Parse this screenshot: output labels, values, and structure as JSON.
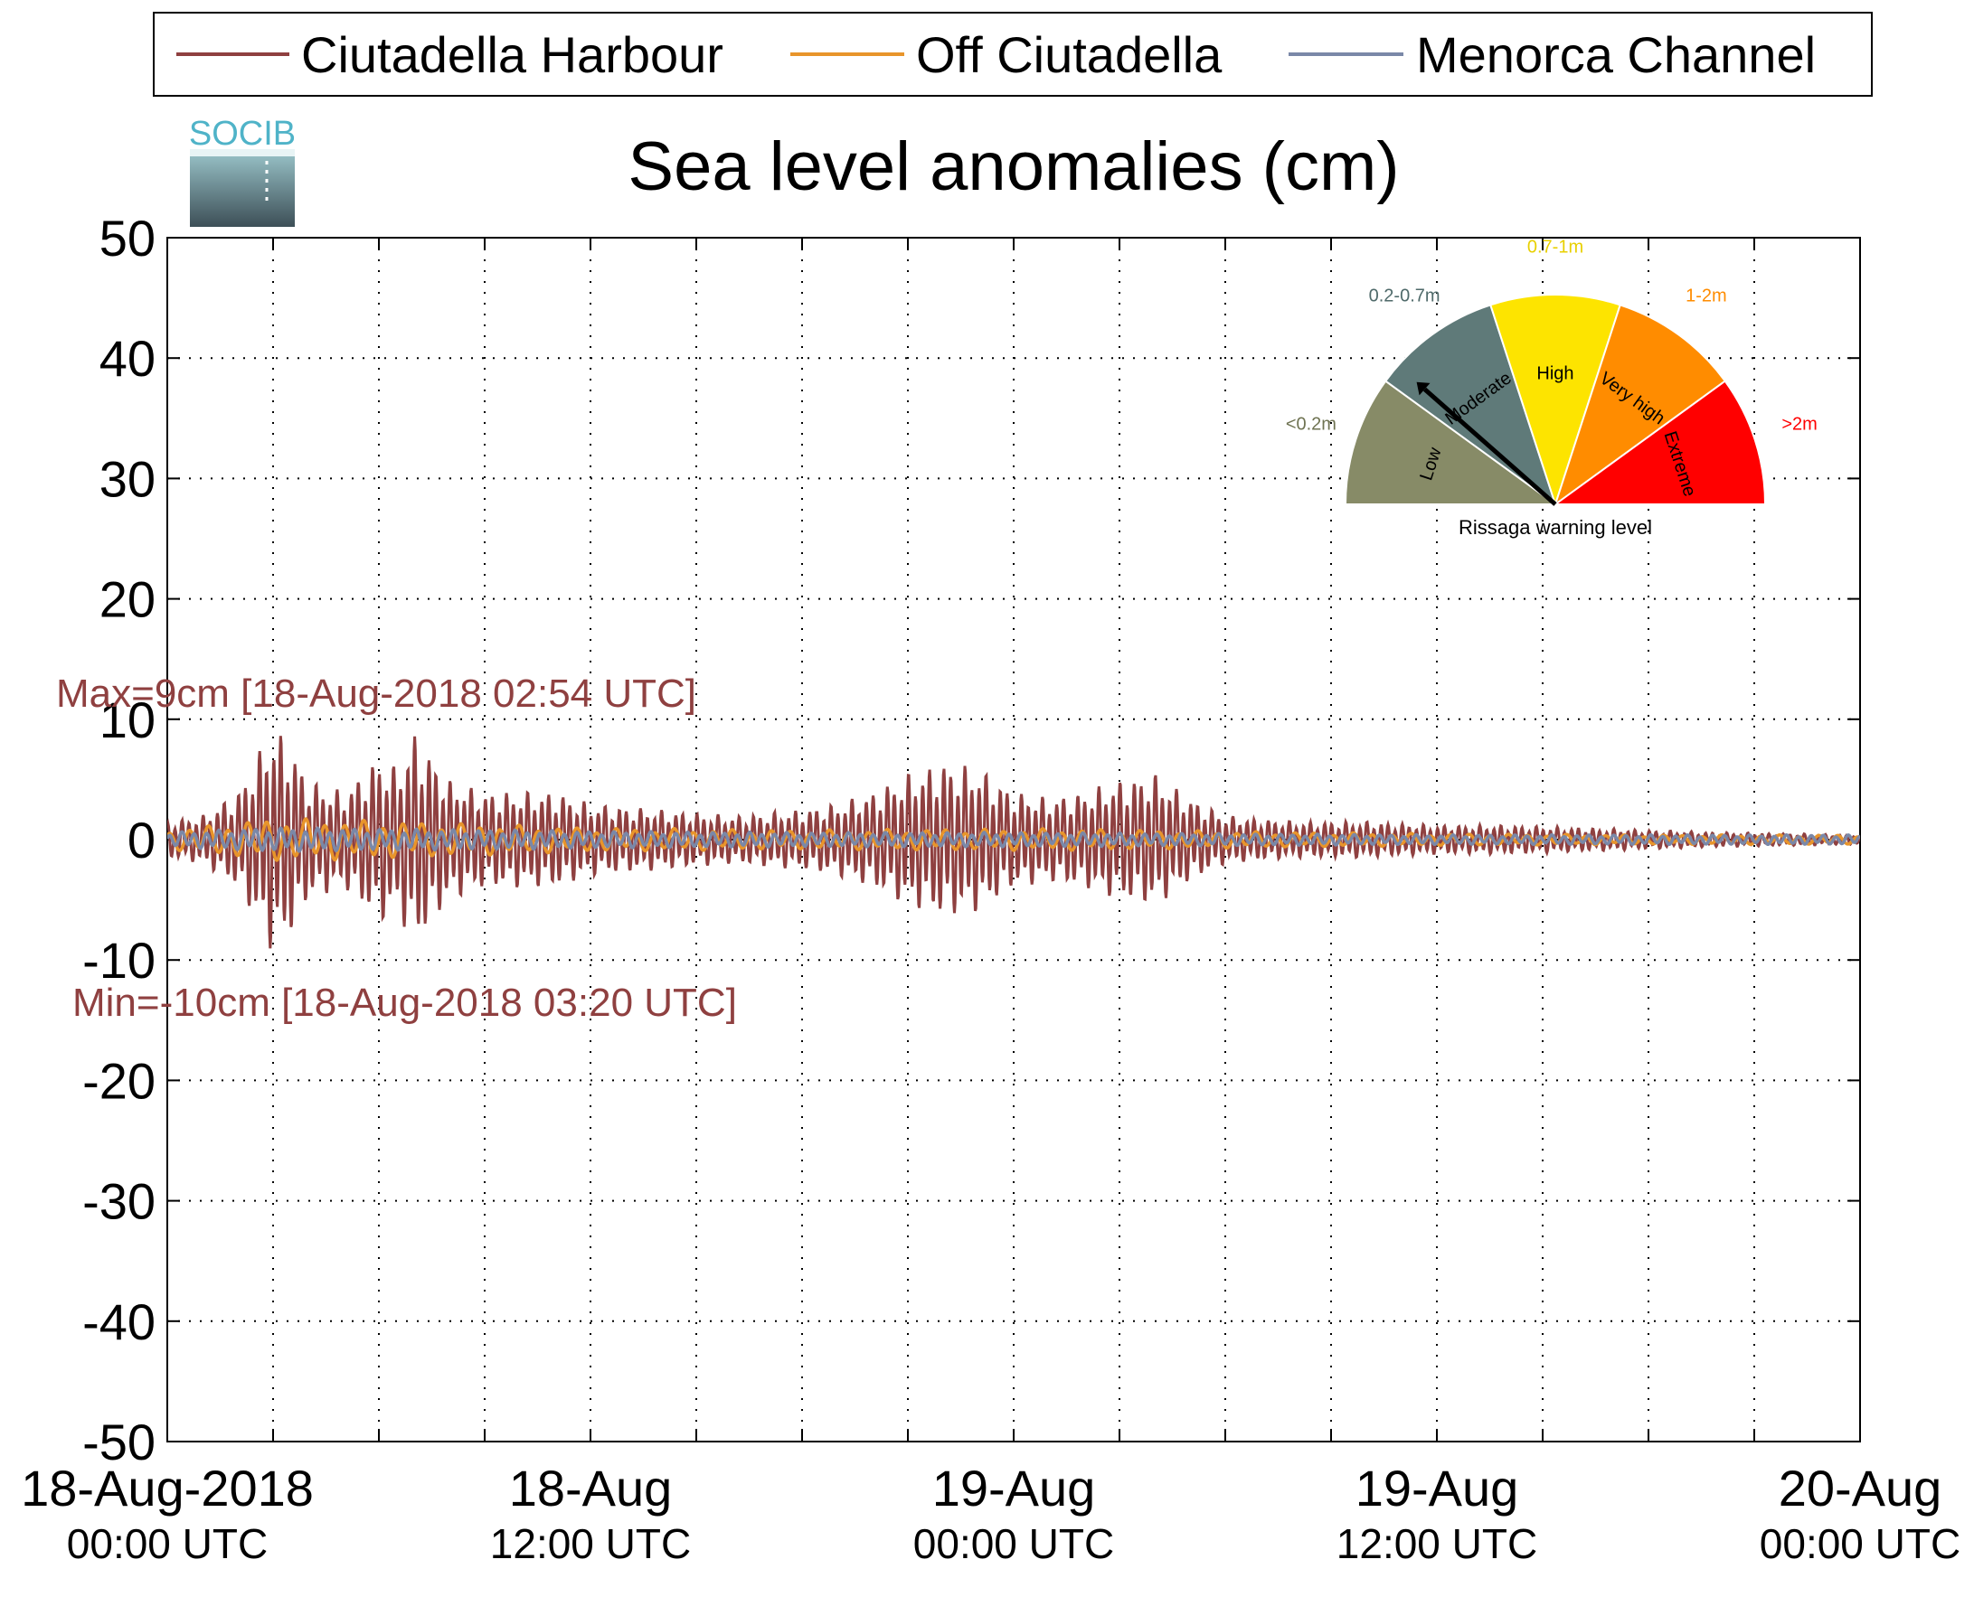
{
  "chart_data": {
    "type": "line",
    "title": "Sea level anomalies (cm)",
    "ylim": [
      -50,
      50
    ],
    "yticks": [
      50,
      40,
      30,
      20,
      10,
      0,
      -10,
      -20,
      -30,
      -40,
      -50
    ],
    "xlim_hours": [
      0,
      48
    ],
    "xticks": [
      {
        "hour": 0,
        "date": "18-Aug-2018",
        "time": "00:00 UTC"
      },
      {
        "hour": 12,
        "date": "18-Aug",
        "time": "12:00 UTC"
      },
      {
        "hour": 24,
        "date": "19-Aug",
        "time": "00:00 UTC"
      },
      {
        "hour": 36,
        "date": "19-Aug",
        "time": "12:00 UTC"
      },
      {
        "hour": 48,
        "date": "20-Aug",
        "time": "00:00 UTC"
      }
    ],
    "minor_x_step_hours": 3,
    "grid": true,
    "legend_position": "top",
    "series": [
      {
        "name": "Ciutadella Harbour",
        "color": "#8f4040",
        "envelope_hours": [
          0,
          1,
          2,
          3,
          3.5,
          4,
          5,
          6,
          6.5,
          7,
          8,
          9,
          10,
          11,
          12,
          14,
          16,
          18,
          19,
          20,
          21,
          22,
          23,
          24,
          25,
          26,
          27,
          28,
          29,
          30,
          32,
          34,
          36,
          38,
          40,
          42,
          44,
          46,
          48
        ],
        "envelope_amp_cm": [
          1.5,
          2,
          4,
          9.5,
          8,
          5,
          4,
          7,
          6,
          9,
          5,
          4,
          4,
          4,
          3,
          2.5,
          2,
          2.5,
          3,
          4,
          5.5,
          6.5,
          6,
          4,
          3.5,
          4,
          5,
          5.5,
          3.5,
          2,
          1.5,
          1.5,
          1.2,
          1.2,
          1,
          0.8,
          0.6,
          0.5,
          0.4
        ]
      },
      {
        "name": "Off Ciutadella",
        "color": "#e8952b",
        "envelope_hours": [
          0,
          3,
          6,
          8,
          10,
          12,
          18,
          22,
          26,
          30,
          36,
          42,
          48
        ],
        "envelope_amp_cm": [
          0.8,
          1.8,
          1.6,
          1.4,
          1.2,
          1.0,
          0.8,
          0.9,
          0.9,
          0.7,
          0.5,
          0.4,
          0.4
        ]
      },
      {
        "name": "Menorca Channel",
        "color": "#7a88a8",
        "envelope_hours": [
          0,
          3,
          6,
          10,
          12,
          18,
          24,
          30,
          36,
          42,
          48
        ],
        "envelope_amp_cm": [
          0.6,
          1.0,
          0.9,
          0.8,
          0.7,
          0.6,
          0.6,
          0.5,
          0.4,
          0.4,
          0.4
        ]
      }
    ],
    "annotations": {
      "max_label": "Max=9cm [18-Aug-2018 02:54 UTC]",
      "min_label": "Min=-10cm [18-Aug-2018 03:20 UTC]"
    }
  },
  "logo": {
    "text": "SOCIB"
  },
  "gauge": {
    "caption": "Rissaga warning level",
    "needle_level_index": 1,
    "segments": [
      {
        "name": "Low",
        "range": "<0.2m",
        "color": "#878b67",
        "range_color": "#6f7352"
      },
      {
        "name": "Moderate",
        "range": "0.2-0.7m",
        "color": "#5f7a79",
        "range_color": "#4f6a6a"
      },
      {
        "name": "High",
        "range": "0.7-1m",
        "color": "#fde400",
        "range_color": "#e8d000"
      },
      {
        "name": "Very high",
        "range": "1-2m",
        "color": "#ff8c00",
        "range_color": "#ff8c00"
      },
      {
        "name": "Extreme",
        "range": ">2m",
        "color": "#ff0000",
        "range_color": "#ff0000"
      }
    ]
  }
}
